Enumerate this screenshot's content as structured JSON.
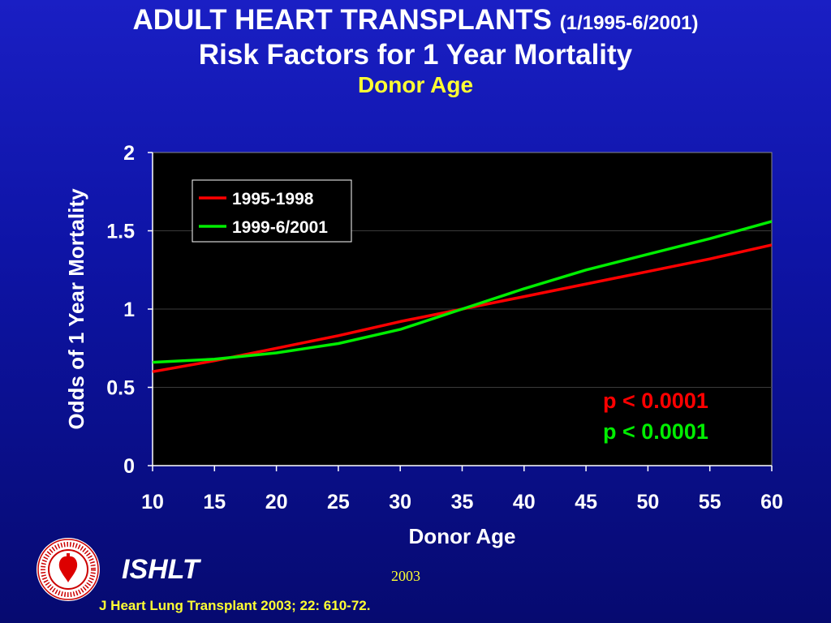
{
  "header": {
    "title_main": "ADULT HEART TRANSPLANTS",
    "title_range": "(1/1995-6/2001)",
    "subtitle": "Risk Factors for 1 Year Mortality",
    "topic": "Donor Age"
  },
  "chart_data": {
    "type": "line",
    "xlabel": "Donor Age",
    "ylabel": "Odds of 1 Year Mortality",
    "xlim": [
      10,
      60
    ],
    "ylim": [
      0,
      2
    ],
    "x_ticks": [
      "10",
      "15",
      "20",
      "25",
      "30",
      "35",
      "40",
      "45",
      "50",
      "55",
      "60"
    ],
    "y_ticks": [
      "0",
      "0.5",
      "1",
      "1.5",
      "2"
    ],
    "grid": "horizontal",
    "legend_position": "top-left",
    "series": [
      {
        "name": "1995-1998",
        "color": "#ff0000",
        "x": [
          10,
          15,
          20,
          25,
          30,
          35,
          40,
          45,
          50,
          55,
          60
        ],
        "y": [
          0.6,
          0.67,
          0.75,
          0.83,
          0.92,
          1.0,
          1.08,
          1.16,
          1.24,
          1.32,
          1.41
        ]
      },
      {
        "name": "1999-6/2001",
        "color": "#00ee00",
        "x": [
          10,
          15,
          20,
          25,
          30,
          35,
          40,
          45,
          50,
          55,
          60
        ],
        "y": [
          0.66,
          0.68,
          0.72,
          0.78,
          0.87,
          1.0,
          1.13,
          1.25,
          1.35,
          1.45,
          1.56
        ]
      }
    ],
    "annotations": [
      {
        "text": "p < 0.0001",
        "color": "#ff0000"
      },
      {
        "text": "p < 0.0001",
        "color": "#00ee00"
      }
    ]
  },
  "footer": {
    "logo_text": "International Society for Heart & Lung Transplantation",
    "org": "ISHLT",
    "year": "2003",
    "citation": "J Heart Lung Transplant 2003; 22: 610-72."
  }
}
